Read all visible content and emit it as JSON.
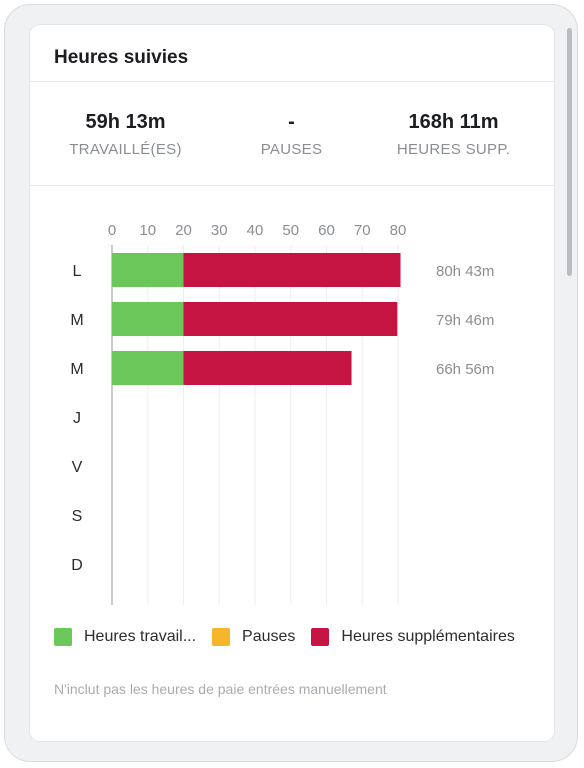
{
  "card": {
    "title": "Heures suivies"
  },
  "stats": [
    {
      "value": "59h 13m",
      "label": "TRAVAILLÉ(ES)"
    },
    {
      "value": "-",
      "label": "PAUSES"
    },
    {
      "value": "168h 11m",
      "label": "HEURES SUPP."
    }
  ],
  "chart_data": {
    "type": "bar",
    "orientation": "horizontal",
    "stacked": true,
    "categories": [
      "L",
      "M",
      "M",
      "J",
      "V",
      "S",
      "D"
    ],
    "xlim": [
      0,
      80
    ],
    "xticks": [
      "0",
      "10",
      "20",
      "30",
      "40",
      "50",
      "60",
      "70",
      "80"
    ],
    "grid": true,
    "series": [
      {
        "name": "Heures travail...",
        "color": "#6cc75a",
        "values": [
          20,
          20,
          20,
          0,
          0,
          0,
          0
        ]
      },
      {
        "name": "Pauses",
        "color": "#f7b52b",
        "values": [
          0,
          0,
          0,
          0,
          0,
          0,
          0
        ]
      },
      {
        "name": "Heures supplémentaires",
        "color": "#c51342",
        "values": [
          60.7,
          59.8,
          47,
          0,
          0,
          0,
          0
        ]
      }
    ],
    "totals": [
      "80h 43m",
      "79h 46m",
      "66h 56m",
      "",
      "",
      "",
      ""
    ],
    "legend_position": "bottom"
  },
  "footnote": "N'inclut pas les heures de paie entrées manuellement"
}
